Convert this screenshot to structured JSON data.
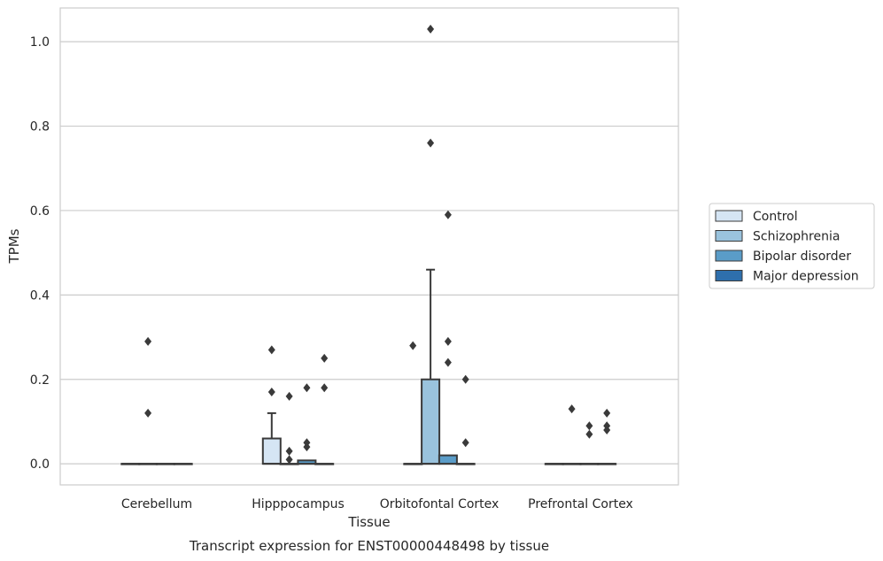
{
  "chart_data": {
    "type": "box",
    "caption": "Transcript expression for ENST00000448498 by tissue",
    "xlabel": "Tissue",
    "ylabel": "TPMs",
    "ylim": [
      -0.05,
      1.08
    ],
    "yticks": [
      0.0,
      0.2,
      0.4,
      0.6,
      0.8,
      1.0
    ],
    "ytick_labels": [
      "0.0",
      "0.2",
      "0.4",
      "0.6",
      "0.8",
      "1.0"
    ],
    "grid": true,
    "legend_position": "right",
    "categories": [
      "Cerebellum",
      "Hipppocampus",
      "Orbitofontal Cortex",
      "Prefrontal Cortex"
    ],
    "series": [
      {
        "name": "Control",
        "color": "#d5e5f4",
        "boxes": [
          {
            "q1": 0.0,
            "median": 0.0,
            "q3": 0.0,
            "whislo": 0.0,
            "whishi": 0.0,
            "fliers": []
          },
          {
            "q1": 0.0,
            "median": 0.0,
            "q3": 0.06,
            "whislo": 0.0,
            "whishi": 0.12,
            "fliers": [
              0.17,
              0.27
            ]
          },
          {
            "q1": 0.0,
            "median": 0.0,
            "q3": 0.0,
            "whislo": 0.0,
            "whishi": 0.0,
            "fliers": []
          },
          {
            "q1": 0.0,
            "median": 0.0,
            "q3": 0.0,
            "whislo": 0.0,
            "whishi": 0.0,
            "fliers": []
          }
        ]
      },
      {
        "name": "Schizophrenia",
        "color": "#9ac3dd",
        "boxes": [
          {
            "q1": 0.0,
            "median": 0.0,
            "q3": 0.0,
            "whislo": 0.0,
            "whishi": 0.0,
            "fliers": [
              0.12,
              0.29
            ]
          },
          {
            "q1": 0.0,
            "median": 0.0,
            "q3": 0.0,
            "whislo": 0.0,
            "whishi": 0.0,
            "fliers": [
              0.01,
              0.03,
              0.16
            ]
          },
          {
            "q1": 0.0,
            "median": 0.0,
            "q3": 0.2,
            "whislo": 0.0,
            "whishi": 0.46,
            "fliers": [
              0.76,
              1.03
            ]
          },
          {
            "q1": 0.0,
            "median": 0.0,
            "q3": 0.0,
            "whislo": 0.0,
            "whishi": 0.0,
            "fliers": [
              0.13
            ]
          }
        ]
      },
      {
        "name": "Bipolar disorder",
        "color": "#5a9cc8",
        "boxes": [
          {
            "q1": 0.0,
            "median": 0.0,
            "q3": 0.0,
            "whislo": 0.0,
            "whishi": 0.0,
            "fliers": []
          },
          {
            "q1": 0.0,
            "median": 0.0,
            "q3": 0.008,
            "whislo": 0.0,
            "whishi": 0.008,
            "fliers": [
              0.04,
              0.05,
              0.18
            ]
          },
          {
            "q1": 0.0,
            "median": 0.0,
            "q3": 0.02,
            "whislo": 0.0,
            "whishi": 0.02,
            "fliers": [
              0.24,
              0.29,
              0.59
            ]
          },
          {
            "q1": 0.0,
            "median": 0.0,
            "q3": 0.0,
            "whislo": 0.0,
            "whishi": 0.0,
            "fliers": [
              0.07,
              0.09
            ]
          }
        ]
      },
      {
        "name": "Major depression",
        "color": "#2e6fad",
        "boxes": [
          {
            "q1": 0.0,
            "median": 0.0,
            "q3": 0.0,
            "whislo": 0.0,
            "whishi": 0.0,
            "fliers": []
          },
          {
            "q1": 0.0,
            "median": 0.0,
            "q3": 0.0,
            "whislo": 0.0,
            "whishi": 0.0,
            "fliers": [
              0.18,
              0.25
            ]
          },
          {
            "q1": 0.0,
            "median": 0.0,
            "q3": 0.0,
            "whislo": 0.0,
            "whishi": 0.0,
            "fliers": [
              0.05,
              0.2
            ]
          },
          {
            "q1": 0.0,
            "median": 0.0,
            "q3": 0.0,
            "whislo": 0.0,
            "whishi": 0.0,
            "fliers": [
              0.08,
              0.09,
              0.12
            ]
          }
        ]
      }
    ],
    "extra_fliers": [
      {
        "category": 2,
        "offset": -0.5,
        "value": 0.28
      }
    ]
  }
}
